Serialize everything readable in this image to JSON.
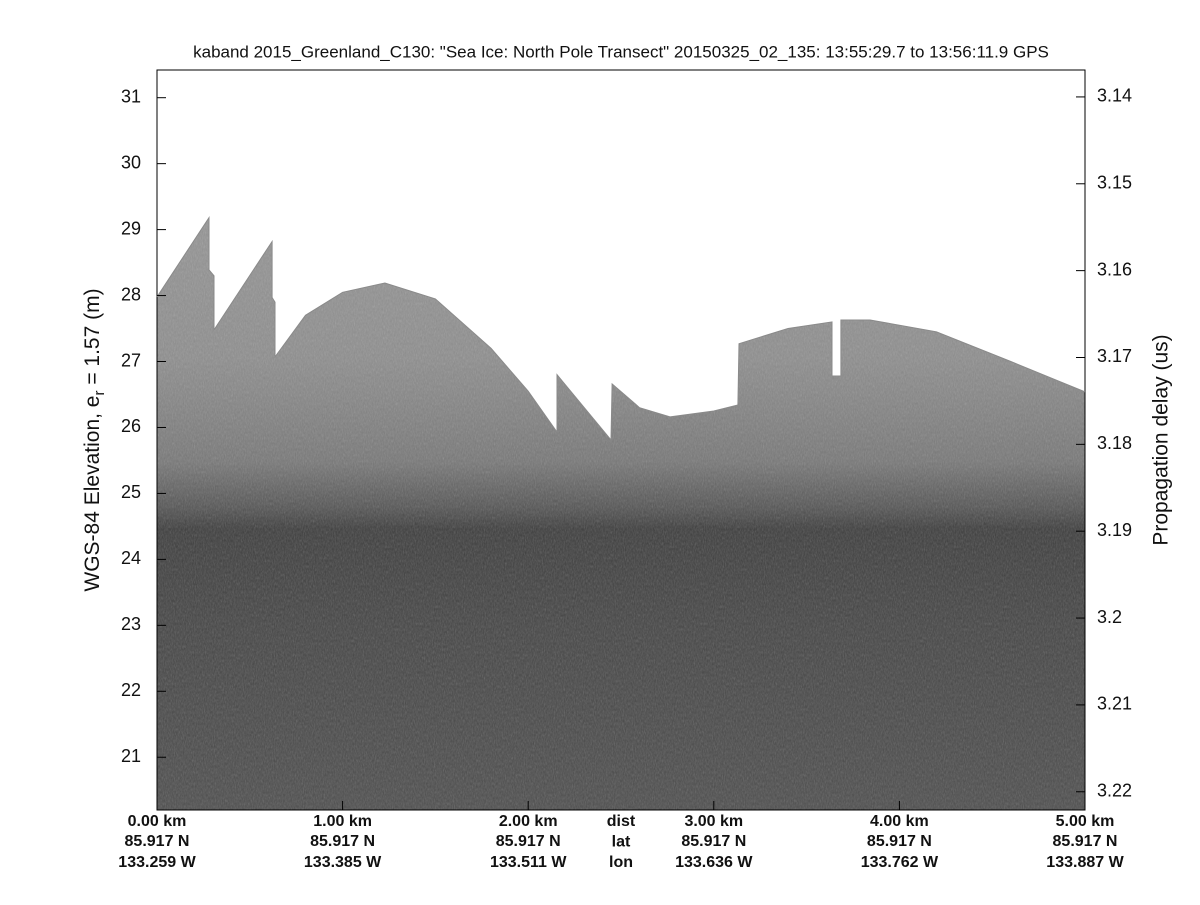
{
  "chart_data": {
    "type": "echogram",
    "title": "kaband 2015_Greenland_C130: \"Sea Ice: North Pole Transect\"  20150325_02_135: 13:55:29.7 to 13:56:11.9 GPS",
    "ylabel": "WGS-84 Elevation, e",
    "ylabel_sub": "r",
    "ylabel_end": " = 1.57 (m)",
    "y2label": "Propagation delay (us)",
    "xlim": [
      0,
      5
    ],
    "xticks": [
      {
        "value": 0,
        "label": "0.00 km"
      },
      {
        "value": 1,
        "label": "1.00 km"
      },
      {
        "value": 2,
        "label": "2.00 km"
      },
      {
        "value": 3,
        "label": "3.00 km"
      },
      {
        "value": 4,
        "label": "4.00 km"
      },
      {
        "value": 5,
        "label": "5.00 km"
      }
    ],
    "lat_labels": [
      "85.917 N",
      "85.917 N",
      "85.917 N",
      "85.917 N",
      "85.917 N",
      "85.917 N"
    ],
    "lon_labels": [
      "133.259 W",
      "133.385 W",
      "133.511 W",
      "133.636 W",
      "133.762 W",
      "133.887 W"
    ],
    "row_labels": [
      "dist",
      "lat",
      "lon"
    ],
    "row_label_x": 2.5,
    "ylim": [
      20.2,
      31.42
    ],
    "yticks": [
      21,
      22,
      23,
      24,
      25,
      26,
      27,
      28,
      29,
      30,
      31
    ],
    "y2lim": [
      3.1369,
      3.2221
    ],
    "y2dir": "reverse",
    "y2ticks": [
      3.14,
      3.15,
      3.16,
      3.17,
      3.18,
      3.19,
      3.2,
      3.21,
      3.22
    ],
    "surface": {
      "x": [
        0,
        0.28,
        0.28,
        0.307,
        0.307,
        0.62,
        0.62,
        0.636,
        0.636,
        0.8,
        1.0,
        1.228,
        1.5,
        1.8,
        2.0,
        2.155,
        2.155,
        2.446,
        2.452,
        2.6,
        2.764,
        3.0,
        3.13,
        3.136,
        3.4,
        3.637,
        3.637,
        3.685,
        3.685,
        3.842,
        4.2,
        4.6,
        5.0
      ],
      "values": [
        27.98,
        29.18,
        28.39,
        28.3,
        27.48,
        28.82,
        27.97,
        27.9,
        27.07,
        27.7,
        28.05,
        28.19,
        27.95,
        27.2,
        26.55,
        25.93,
        26.8,
        25.81,
        26.66,
        26.3,
        26.16,
        26.25,
        26.34,
        27.27,
        27.5,
        27.6,
        26.78,
        26.78,
        27.63,
        27.63,
        27.45,
        27.0,
        26.54
      ]
    }
  }
}
